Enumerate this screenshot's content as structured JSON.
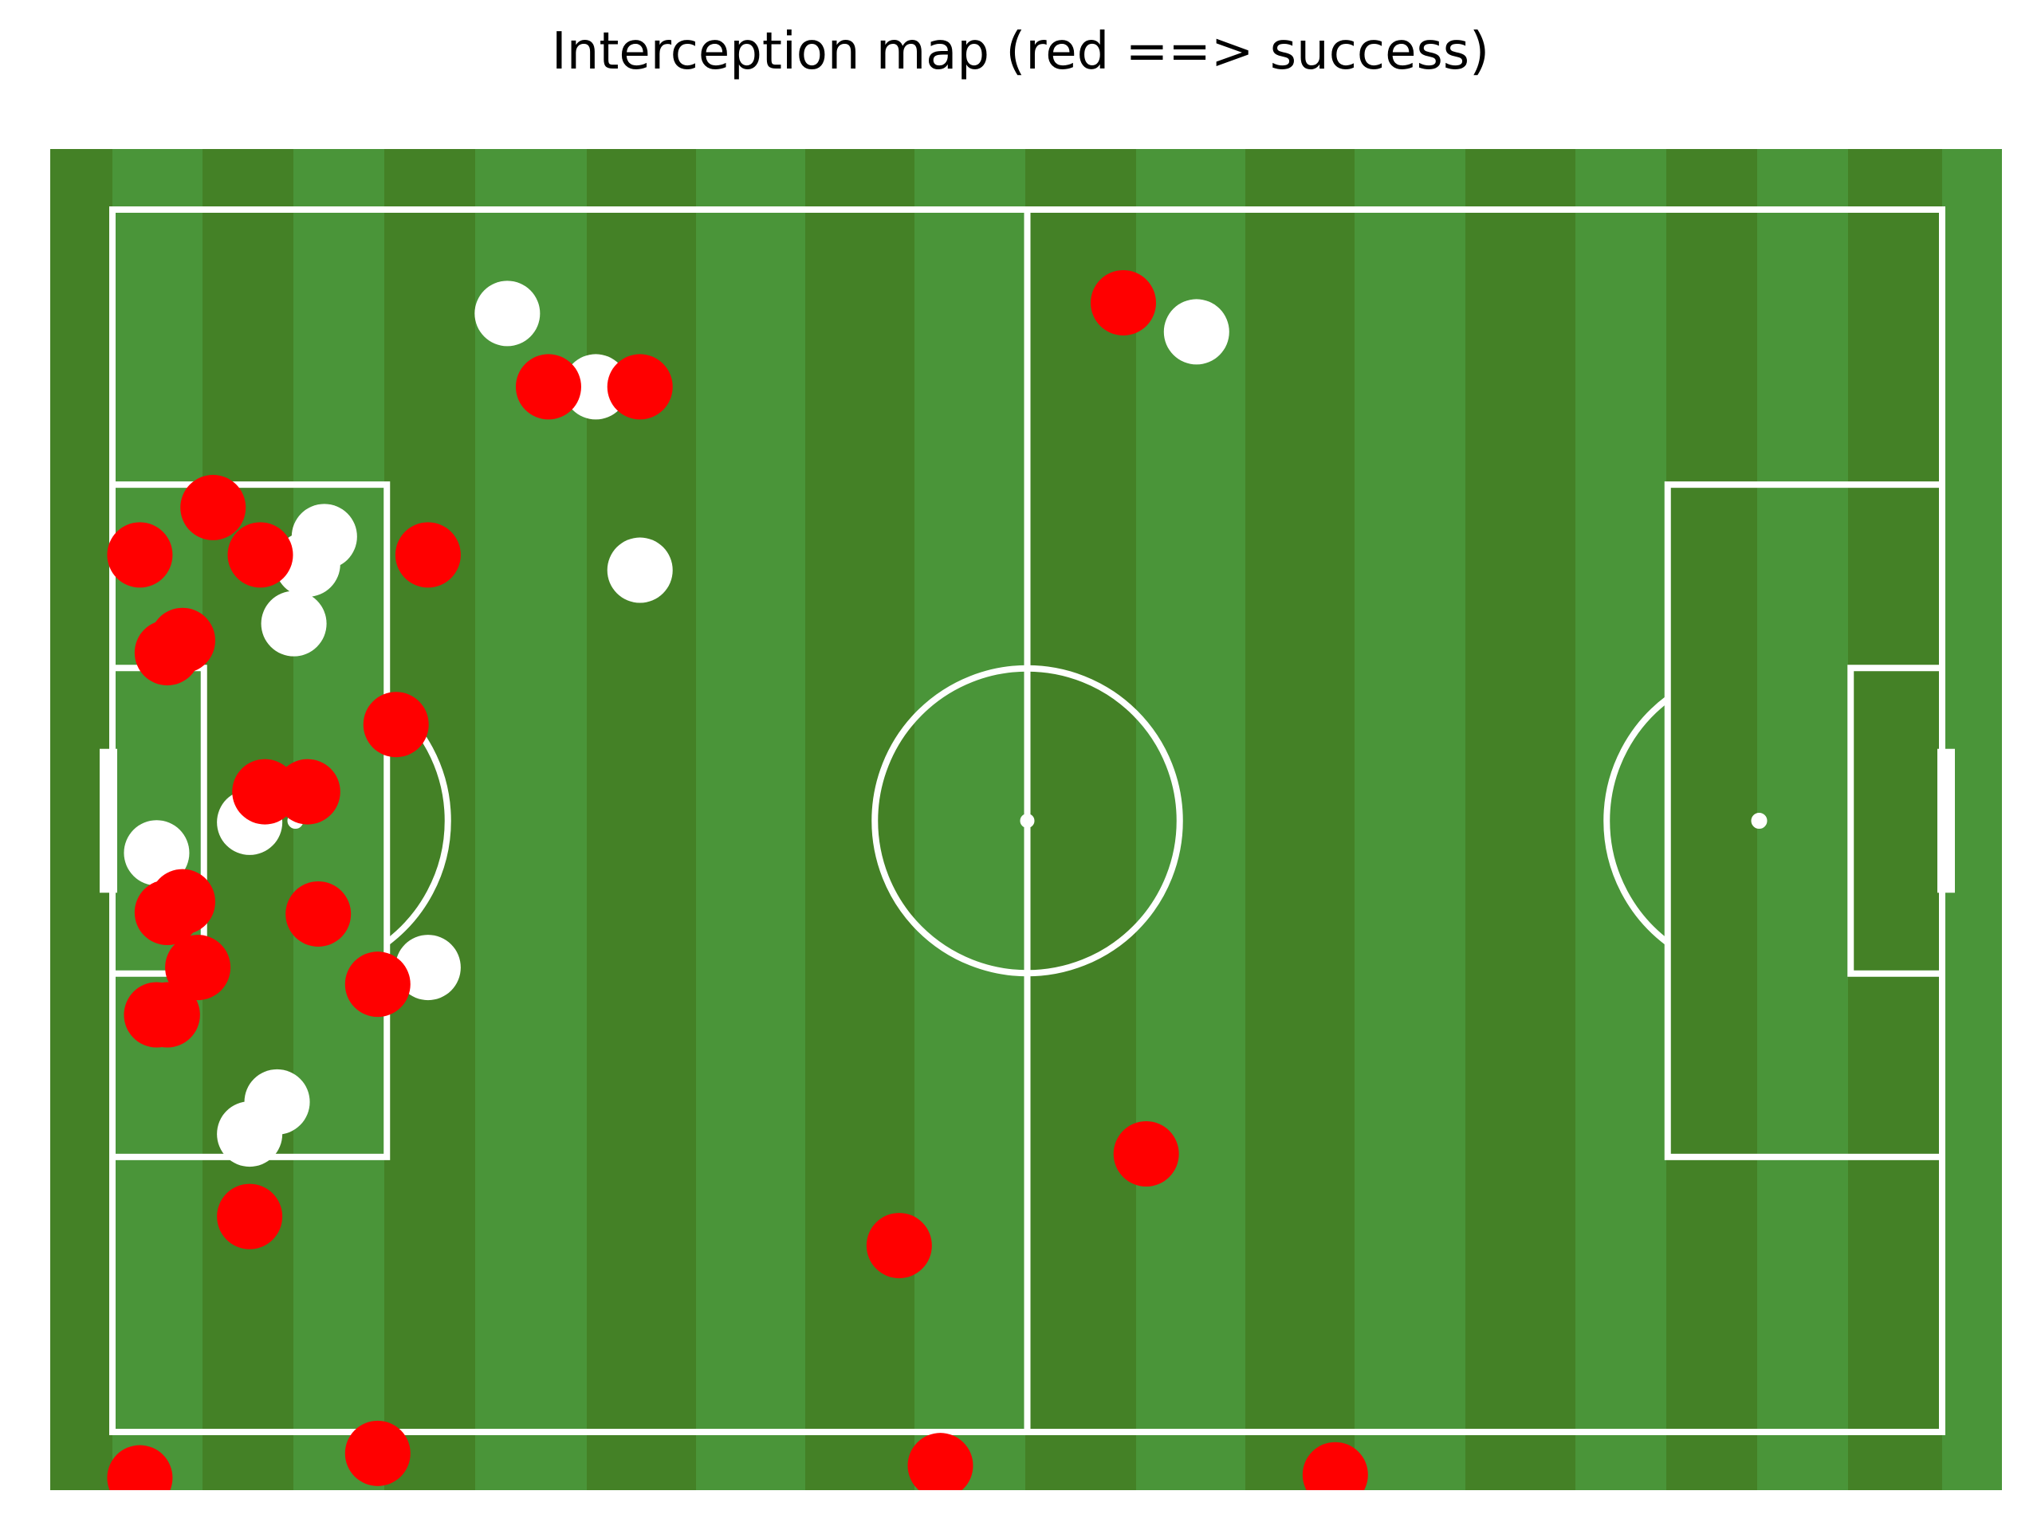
{
  "chart_data": {
    "type": "scatter",
    "title": "Interception map (red ==> success)",
    "xlabel": "",
    "ylabel": "",
    "xlim": [
      0,
      120
    ],
    "ylim": [
      0,
      80
    ],
    "pitch_colors": {
      "grass_dark": "#448126",
      "grass_light": "#4a9539",
      "lines": "#ffffff"
    },
    "series": [
      {
        "status": "success",
        "color": "#ff0000",
        "points": [
          {
            "x": 1.8,
            "y": 57.4
          },
          {
            "x": 3.6,
            "y": 51.0
          },
          {
            "x": 4.6,
            "y": 51.8
          },
          {
            "x": 6.6,
            "y": 60.5
          },
          {
            "x": 9.7,
            "y": 57.4
          },
          {
            "x": 13.5,
            "y": 33.9
          },
          {
            "x": 10.0,
            "y": 41.9
          },
          {
            "x": 12.8,
            "y": 41.9
          },
          {
            "x": 20.7,
            "y": 57.4
          },
          {
            "x": 18.6,
            "y": 46.3
          },
          {
            "x": 4.6,
            "y": 34.7
          },
          {
            "x": 3.6,
            "y": 34.0
          },
          {
            "x": 5.6,
            "y": 30.4
          },
          {
            "x": 2.9,
            "y": 27.3
          },
          {
            "x": 3.6,
            "y": 27.3
          },
          {
            "x": 17.4,
            "y": 29.3
          },
          {
            "x": 9.0,
            "y": 14.1
          },
          {
            "x": 28.6,
            "y": 68.4
          },
          {
            "x": 34.6,
            "y": 68.4
          },
          {
            "x": 66.3,
            "y": 73.9
          },
          {
            "x": 67.8,
            "y": 18.2
          },
          {
            "x": 51.6,
            "y": 12.2
          },
          {
            "x": 17.4,
            "y": -1.4
          },
          {
            "x": 1.8,
            "y": -3.0
          },
          {
            "x": 54.3,
            "y": -2.2
          },
          {
            "x": 80.2,
            "y": -2.8
          }
        ]
      },
      {
        "status": "failure",
        "color": "#ffffff",
        "points": [
          {
            "x": 25.9,
            "y": 73.2
          },
          {
            "x": 31.7,
            "y": 68.4
          },
          {
            "x": 71.1,
            "y": 72.0
          },
          {
            "x": 13.9,
            "y": 58.6
          },
          {
            "x": 12.8,
            "y": 56.8
          },
          {
            "x": 11.9,
            "y": 52.9
          },
          {
            "x": 34.6,
            "y": 56.4
          },
          {
            "x": 9.0,
            "y": 39.9
          },
          {
            "x": 2.9,
            "y": 37.9
          },
          {
            "x": 20.7,
            "y": 30.4
          },
          {
            "x": 10.8,
            "y": 21.6
          },
          {
            "x": 9.0,
            "y": 19.5
          }
        ]
      }
    ]
  }
}
